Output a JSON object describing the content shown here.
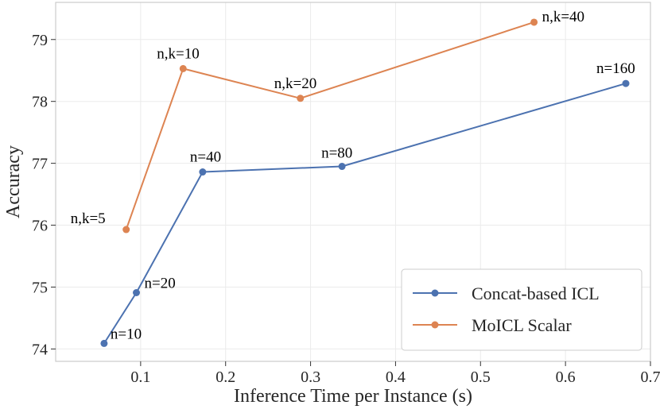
{
  "chart_data": {
    "type": "line",
    "title": "",
    "xlabel": "Inference Time per Instance (s)",
    "ylabel": "Accuracy",
    "xlim": [
      0.0,
      0.7
    ],
    "ylim": [
      73.8,
      79.6
    ],
    "xticks": [
      0.1,
      0.2,
      0.3,
      0.4,
      0.5,
      0.6,
      0.7
    ],
    "xtick_labels": [
      "0.1",
      "0.2",
      "0.3",
      "0.4",
      "0.5",
      "0.6",
      "0.7"
    ],
    "yticks": [
      74,
      75,
      76,
      77,
      78,
      79
    ],
    "ytick_labels": [
      "74",
      "75",
      "76",
      "77",
      "78",
      "79"
    ],
    "grid": true,
    "legend_position": "bottom-right",
    "series": [
      {
        "name": "Concat-based ICL",
        "color": "#4c72b0",
        "x": [
          0.057,
          0.095,
          0.173,
          0.337,
          0.671
        ],
        "y": [
          74.09,
          74.91,
          76.86,
          76.95,
          78.29
        ],
        "labels": [
          "n=10",
          "n=20",
          "n=40",
          "n=80",
          "n=160"
        ]
      },
      {
        "name": "MoICL Scalar",
        "color": "#dd8452",
        "x": [
          0.083,
          0.15,
          0.288,
          0.563
        ],
        "y": [
          75.93,
          78.53,
          78.05,
          79.28
        ],
        "labels": [
          "n,k=5",
          "n,k=10",
          "n,k=20",
          "n,k=40"
        ]
      }
    ]
  }
}
